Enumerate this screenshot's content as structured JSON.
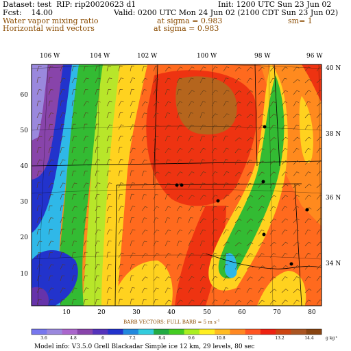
{
  "header": {
    "dataset_line": "Dataset: test  RIP: rip20020623 d1",
    "init_line": "Init: 1200 UTC Sun 23 Jun 02",
    "fcst_line": "Fcst:    14.00",
    "valid_line": "Valid: 0200 UTC Mon 24 Jun 02 (2100 CDT Sun 23 Jun 02)",
    "field1_name": "Water vapor mixing ratio",
    "field1_level": "at sigma = 0.983",
    "field1_extra": "sm= 1",
    "field2_name": "Horizontal wind vectors",
    "field2_level": "at sigma = 0.983"
  },
  "map": {
    "lon_labels": [
      "106 W",
      "104 W",
      "102 W",
      "100 W",
      "98 W",
      "96 W"
    ],
    "lat_labels": [
      "40 N",
      "38 N",
      "36 N",
      "34 N"
    ],
    "grid_x_ticks": [
      "10",
      "20",
      "30",
      "40",
      "50",
      "60",
      "70",
      "80"
    ],
    "grid_y_ticks": [
      "10",
      "20",
      "30",
      "40",
      "50",
      "60"
    ],
    "colors": {
      "dry": "#7b68ee",
      "very_dry": "#6a3d9a",
      "blue": "#2233cc",
      "cyan": "#2fb8e8",
      "green": "#33bb33",
      "lime": "#aaee22",
      "yellow": "#ffee22",
      "orange": "#ff9922",
      "red_orange": "#ff5522",
      "red": "#ee2211",
      "dark_red": "#b5651d",
      "brown": "#8b4513"
    },
    "barb_note": "BARB VECTORS:  FULL BARB = 5 m s",
    "barb_note_sup": "-1"
  },
  "colorbar": {
    "values": [
      "3.6",
      "4.8",
      "6",
      "7.2",
      "8.4",
      "9.6",
      "10.8",
      "12",
      "13.2",
      "14.4"
    ],
    "units": "g kg",
    "units_sup": "-1",
    "colors": [
      "#7777ee",
      "#9a88dd",
      "#aa66cc",
      "#8844aa",
      "#5533bb",
      "#2233cc",
      "#2288dd",
      "#33ccdd",
      "#22aa44",
      "#44cc22",
      "#aaee22",
      "#ffee22",
      "#ffbb22",
      "#ff8822",
      "#ff5522",
      "#ee2211",
      "#cc4411",
      "#aa5522",
      "#884411"
    ]
  },
  "footer": {
    "model_info": "Model info: V3.5.0   Grell     Blackadar   Simple ice    12 km,  29 levels,    80 sec"
  }
}
